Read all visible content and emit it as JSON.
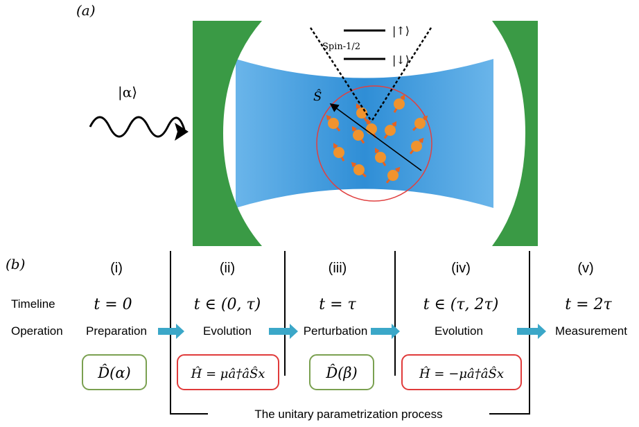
{
  "panel_a": {
    "label": "(a)",
    "input_state": "|α⟩",
    "spin_label": "Spin-1/2",
    "level_up": "|↑⟩",
    "level_down": "|↓⟩",
    "spin_operator": "Ŝ",
    "colors": {
      "mirror": "#3a9a45",
      "beam": "#3b95d8",
      "spin": "#f0932e",
      "ensemble_ring": "#e04040"
    }
  },
  "panel_b": {
    "label": "(b)",
    "row_labels": {
      "timeline": "Timeline",
      "operation": "Operation"
    },
    "stages": [
      {
        "numeral": "(i)",
        "time": "t = 0",
        "operation": "Preparation",
        "box": "D̂(α)"
      },
      {
        "numeral": "(ii)",
        "time": "t ∈ (0, τ)",
        "operation": "Evolution",
        "box": "Ĥ = μâ†âŜx"
      },
      {
        "numeral": "(iii)",
        "time": "t = τ",
        "operation": "Perturbation",
        "box": "D̂(β)"
      },
      {
        "numeral": "(iv)",
        "time": "t ∈ (τ, 2τ)",
        "operation": "Evolution",
        "box": "Ĥ = −μâ†âŜx"
      },
      {
        "numeral": "(v)",
        "time": "t = 2τ",
        "operation": "Measurement",
        "box": ""
      }
    ],
    "bracket_label": "The unitary parametrization process",
    "colors": {
      "arrow": "#3ba7c8",
      "box_green": "#7aa050",
      "box_red": "#e03a3a"
    }
  }
}
